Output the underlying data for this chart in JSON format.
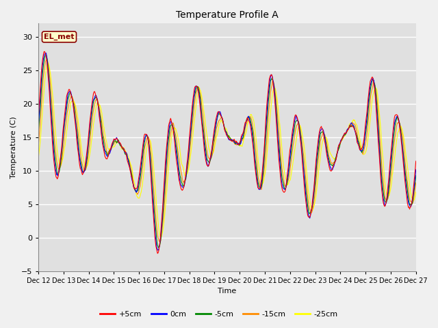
{
  "title": "Temperature Profile A",
  "xlabel": "Time",
  "ylabel": "Temperature (C)",
  "ylim": [
    -5,
    32
  ],
  "yticks": [
    -5,
    0,
    5,
    10,
    15,
    20,
    25,
    30
  ],
  "annotation_text": "EL_met",
  "annotation_box_facecolor": "#ffffcc",
  "annotation_text_color": "#8b0000",
  "annotation_edge_color": "#8b0000",
  "series": [
    {
      "label": "+5cm",
      "color": "#ff0000"
    },
    {
      "label": "0cm",
      "color": "#0000ff"
    },
    {
      "label": "-5cm",
      "color": "#008800"
    },
    {
      "label": "-15cm",
      "color": "#ff8c00"
    },
    {
      "label": "-25cm",
      "color": "#ffff00"
    }
  ],
  "n_days": 15,
  "start_day": 12,
  "points_per_day": 48,
  "fig_bg_color": "#f0f0f0",
  "plot_bg_color": "#e0e0e0",
  "grid_color": "#ffffff",
  "title_fontsize": 10,
  "axis_label_fontsize": 8,
  "tick_fontsize": 7,
  "legend_fontsize": 8
}
